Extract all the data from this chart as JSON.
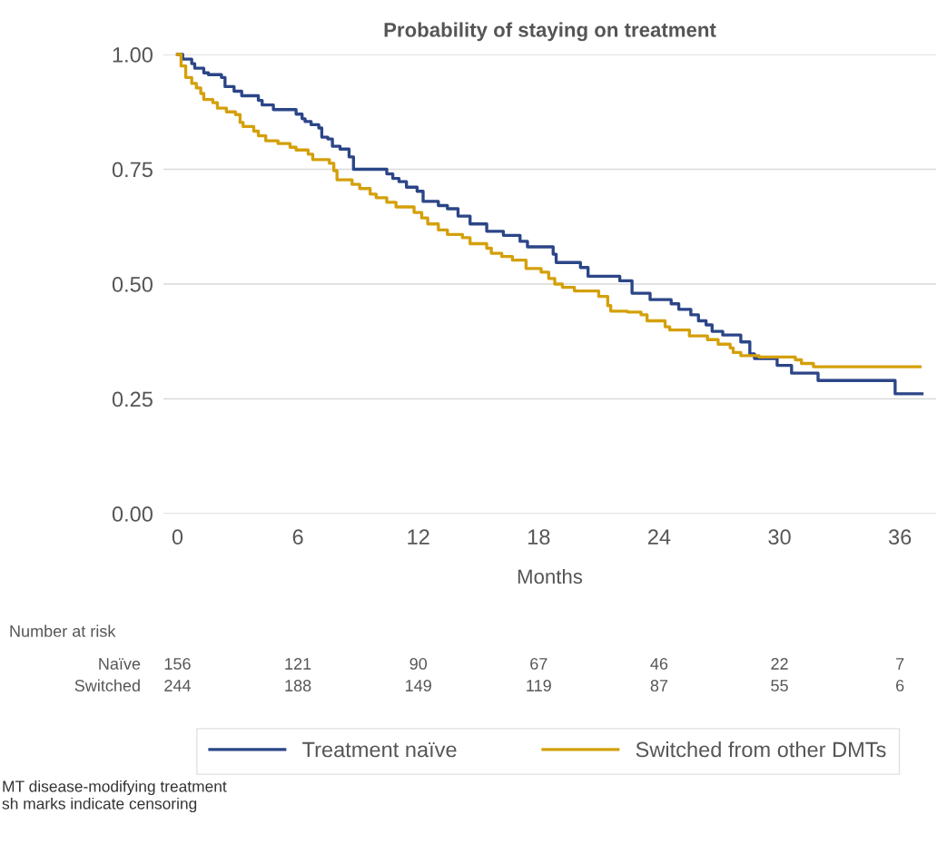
{
  "chart_data": {
    "type": "step",
    "title": "Probability of staying on treatment",
    "xlabel": "Months",
    "series": [
      {
        "name": "Treatment naïve",
        "color": "#2b4587",
        "x": [
          0,
          0.26,
          0.71,
          0.86,
          1.31,
          1.54,
          2.19,
          2.37,
          2.82,
          3.2,
          4.03,
          4.22,
          4.78,
          5.91,
          6.21,
          6.36,
          6.66,
          7.04,
          7.19,
          7.49,
          7.72,
          8.1,
          8.55,
          8.77,
          10.43,
          10.73,
          11.04,
          11.41,
          11.94,
          12.24,
          13.0,
          13.45,
          13.98,
          14.58,
          15.41,
          16.24,
          17.07,
          17.44,
          18.72,
          18.87,
          20.08,
          20.46,
          22.04,
          22.65,
          23.55,
          24.6,
          24.98,
          25.58,
          25.96,
          26.34,
          26.64,
          27.17,
          28.07,
          28.52,
          28.75,
          29.88,
          30.6,
          31.92,
          35.76,
          37.1
        ],
        "values": [
          1.0,
          0.99,
          0.98,
          0.97,
          0.96,
          0.956,
          0.95,
          0.93,
          0.92,
          0.91,
          0.9,
          0.89,
          0.88,
          0.87,
          0.86,
          0.854,
          0.847,
          0.84,
          0.82,
          0.816,
          0.8,
          0.794,
          0.777,
          0.75,
          0.74,
          0.73,
          0.723,
          0.711,
          0.702,
          0.68,
          0.671,
          0.664,
          0.648,
          0.631,
          0.615,
          0.606,
          0.593,
          0.581,
          0.565,
          0.547,
          0.536,
          0.517,
          0.507,
          0.48,
          0.466,
          0.457,
          0.445,
          0.433,
          0.42,
          0.411,
          0.397,
          0.389,
          0.374,
          0.348,
          0.338,
          0.323,
          0.306,
          0.29,
          0.261,
          0.261
        ]
      },
      {
        "name": "Switched from other DMTs",
        "color": "#d4a00a",
        "x": [
          0,
          0.18,
          0.41,
          0.71,
          0.94,
          1.16,
          1.31,
          1.76,
          1.99,
          2.44,
          2.89,
          3.12,
          3.27,
          3.8,
          4.03,
          4.4,
          5.01,
          5.61,
          5.91,
          6.51,
          6.74,
          7.57,
          7.79,
          7.95,
          8.7,
          9.08,
          9.6,
          9.9,
          10.43,
          10.89,
          11.79,
          12.17,
          12.47,
          13.0,
          13.45,
          14.2,
          14.58,
          15.41,
          15.64,
          16.16,
          16.69,
          17.37,
          18.12,
          18.5,
          18.8,
          19.18,
          19.78,
          20.99,
          21.44,
          21.59,
          22.42,
          23.1,
          23.4,
          24.3,
          24.53,
          25.51,
          26.41,
          26.94,
          27.54,
          27.69,
          28.07,
          28.98,
          30.79,
          31.09,
          31.69,
          37.0
        ],
        "values": [
          1.0,
          0.975,
          0.95,
          0.937,
          0.927,
          0.915,
          0.902,
          0.895,
          0.883,
          0.875,
          0.869,
          0.852,
          0.843,
          0.833,
          0.823,
          0.812,
          0.806,
          0.798,
          0.792,
          0.783,
          0.771,
          0.763,
          0.747,
          0.727,
          0.717,
          0.708,
          0.696,
          0.688,
          0.678,
          0.668,
          0.656,
          0.644,
          0.631,
          0.618,
          0.608,
          0.601,
          0.588,
          0.578,
          0.567,
          0.56,
          0.552,
          0.534,
          0.526,
          0.512,
          0.5,
          0.493,
          0.485,
          0.473,
          0.453,
          0.441,
          0.439,
          0.433,
          0.42,
          0.407,
          0.4,
          0.387,
          0.379,
          0.369,
          0.361,
          0.351,
          0.344,
          0.341,
          0.335,
          0.327,
          0.32,
          0.32
        ]
      }
    ],
    "xlim": [
      -0.7,
      37.8
    ],
    "xticks": [
      0,
      6,
      12,
      18,
      24,
      30,
      36
    ],
    "ylim": [
      0,
      1
    ],
    "yticks": [
      {
        "value": 0,
        "label": "0.00"
      },
      {
        "value": 0.25,
        "label": "0.25"
      },
      {
        "value": 0.5,
        "label": "0.50"
      },
      {
        "value": 0.75,
        "label": "0.75"
      },
      {
        "value": 1,
        "label": "1.00"
      }
    ],
    "grid": "y",
    "legend": "bottom",
    "line_style": "solid",
    "annotations": [
      "Number at risk",
      "Naïve",
      "156",
      "121",
      "90",
      "67",
      "46",
      "22",
      "7",
      "Switched",
      "244",
      "188",
      "149",
      "119",
      "87",
      "55",
      "6",
      "MT disease-modifying treatment",
      "sh marks indicate censoring"
    ]
  }
}
